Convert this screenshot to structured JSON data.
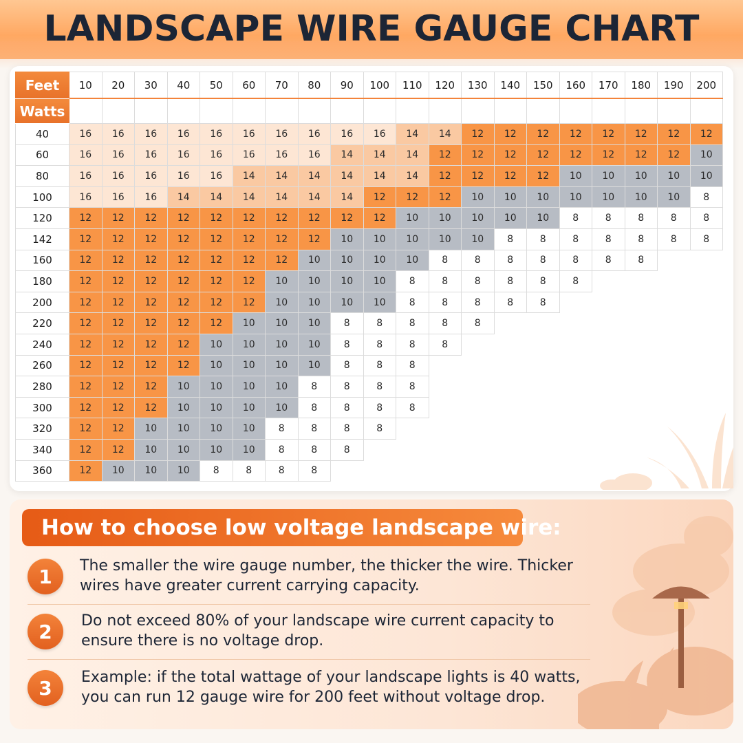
{
  "title": "LANDSCAPE WIRE GAUGE CHART",
  "chart_data": {
    "type": "table",
    "title": "LANDSCAPE WIRE GAUGE CHART",
    "column_header_label": "Feet",
    "row_header_label": "Watts",
    "columns": [
      10,
      20,
      30,
      40,
      50,
      60,
      70,
      80,
      90,
      100,
      110,
      120,
      130,
      140,
      150,
      160,
      170,
      180,
      190,
      200
    ],
    "rows": [
      {
        "watts": 40,
        "gauges": [
          16,
          16,
          16,
          16,
          16,
          16,
          16,
          16,
          16,
          16,
          14,
          14,
          12,
          12,
          12,
          12,
          12,
          12,
          12,
          12
        ]
      },
      {
        "watts": 60,
        "gauges": [
          16,
          16,
          16,
          16,
          16,
          16,
          16,
          16,
          14,
          14,
          14,
          12,
          12,
          12,
          12,
          12,
          12,
          12,
          12,
          10
        ]
      },
      {
        "watts": 80,
        "gauges": [
          16,
          16,
          16,
          16,
          16,
          14,
          14,
          14,
          14,
          14,
          14,
          12,
          12,
          12,
          12,
          10,
          10,
          10,
          10,
          10
        ]
      },
      {
        "watts": 100,
        "gauges": [
          16,
          16,
          16,
          14,
          14,
          14,
          14,
          14,
          14,
          12,
          12,
          12,
          10,
          10,
          10,
          10,
          10,
          10,
          10,
          8
        ]
      },
      {
        "watts": 120,
        "gauges": [
          12,
          12,
          12,
          12,
          12,
          12,
          12,
          12,
          12,
          12,
          10,
          10,
          10,
          10,
          10,
          8,
          8,
          8,
          8,
          8
        ]
      },
      {
        "watts": 142,
        "gauges": [
          12,
          12,
          12,
          12,
          12,
          12,
          12,
          12,
          10,
          10,
          10,
          10,
          10,
          8,
          8,
          8,
          8,
          8,
          8,
          8
        ]
      },
      {
        "watts": 160,
        "gauges": [
          12,
          12,
          12,
          12,
          12,
          12,
          12,
          10,
          10,
          10,
          10,
          8,
          8,
          8,
          8,
          8,
          8,
          8
        ]
      },
      {
        "watts": 180,
        "gauges": [
          12,
          12,
          12,
          12,
          12,
          12,
          10,
          10,
          10,
          10,
          8,
          8,
          8,
          8,
          8,
          8
        ]
      },
      {
        "watts": 200,
        "gauges": [
          12,
          12,
          12,
          12,
          12,
          12,
          10,
          10,
          10,
          10,
          8,
          8,
          8,
          8,
          8
        ]
      },
      {
        "watts": 220,
        "gauges": [
          12,
          12,
          12,
          12,
          12,
          10,
          10,
          10,
          8,
          8,
          8,
          8,
          8
        ]
      },
      {
        "watts": 240,
        "gauges": [
          12,
          12,
          12,
          12,
          10,
          10,
          10,
          10,
          8,
          8,
          8,
          8
        ]
      },
      {
        "watts": 260,
        "gauges": [
          12,
          12,
          12,
          12,
          10,
          10,
          10,
          10,
          8,
          8,
          8
        ]
      },
      {
        "watts": 280,
        "gauges": [
          12,
          12,
          12,
          10,
          10,
          10,
          10,
          8,
          8,
          8,
          8
        ]
      },
      {
        "watts": 300,
        "gauges": [
          12,
          12,
          12,
          10,
          10,
          10,
          10,
          8,
          8,
          8,
          8
        ]
      },
      {
        "watts": 320,
        "gauges": [
          12,
          12,
          10,
          10,
          10,
          10,
          8,
          8,
          8,
          8
        ]
      },
      {
        "watts": 340,
        "gauges": [
          12,
          12,
          10,
          10,
          10,
          10,
          8,
          8,
          8
        ]
      },
      {
        "watts": 360,
        "gauges": [
          12,
          10,
          10,
          10,
          8,
          8,
          8,
          8
        ]
      }
    ],
    "colors": {
      "16": "#fde6d4",
      "14": "#fac9a2",
      "12": "#f89546",
      "10": "#b7bcc4",
      "8": "#ffffff"
    }
  },
  "tips": {
    "heading": "How to choose low voltage landscape wire:",
    "items": [
      {
        "number": "1",
        "text": "The smaller the wire gauge number, the thicker the wire. Thicker wires have greater current carrying capacity."
      },
      {
        "number": "2",
        "text": "Do not exceed 80% of your landscape wire current capacity to ensure there is no voltage drop."
      },
      {
        "number": "3",
        "text": "Example: if the total wattage of your landscape lights is 40 watts, you can run 12 gauge wire for 200 feet without voltage drop."
      }
    ]
  },
  "colors": {
    "accent": "#f3833a",
    "title": "#1c2535"
  }
}
